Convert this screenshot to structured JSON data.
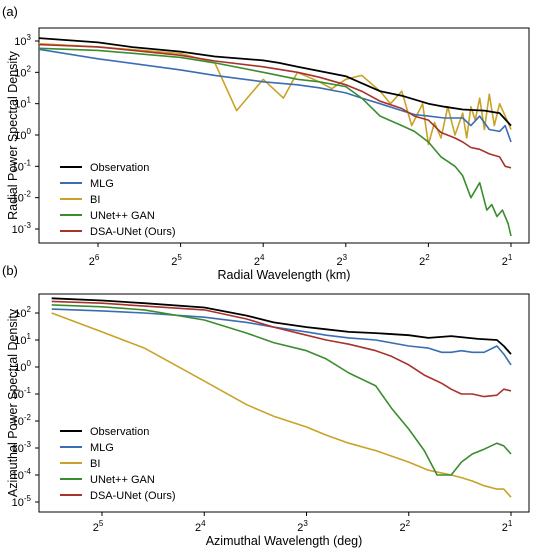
{
  "chart_data": [
    {
      "type": "line",
      "panel_label": "(a)",
      "xlabel": "Radial Wavelength (km)",
      "ylabel": "Radial Power Spectral Density",
      "x_scale": "log2-reversed",
      "y_scale": "log10",
      "x_ticks": [
        {
          "value": 64,
          "base": "2",
          "exp": "6"
        },
        {
          "value": 32,
          "base": "2",
          "exp": "5"
        },
        {
          "value": 16,
          "base": "2",
          "exp": "4"
        },
        {
          "value": 8,
          "base": "2",
          "exp": "3"
        },
        {
          "value": 4,
          "base": "2",
          "exp": "2"
        },
        {
          "value": 2,
          "base": "2",
          "exp": "1"
        }
      ],
      "y_ticks": [
        {
          "value": 1000,
          "base": "10",
          "exp": "3"
        },
        {
          "value": 100,
          "base": "10",
          "exp": "2"
        },
        {
          "value": 10,
          "base": "10",
          "exp": "1"
        },
        {
          "value": 1,
          "base": "10",
          "exp": "0"
        },
        {
          "value": 0.1,
          "base": "10",
          "exp": "-1"
        },
        {
          "value": 0.01,
          "base": "10",
          "exp": "-2"
        },
        {
          "value": 0.001,
          "base": "10",
          "exp": "-3"
        }
      ],
      "legend_position": "bottom-left",
      "series": [
        {
          "name": "Observation",
          "color": "#000000",
          "x": [
            128,
            64,
            48,
            32,
            24,
            16,
            14,
            12,
            10,
            8,
            7,
            6,
            5,
            4,
            3.5,
            3,
            2.5,
            2.2,
            2
          ],
          "y": [
            1400,
            900,
            640,
            460,
            320,
            240,
            200,
            150,
            110,
            75,
            45,
            25,
            18,
            10,
            8,
            6.5,
            6,
            5,
            2
          ]
        },
        {
          "name": "MLG",
          "color": "#3b6db4",
          "x": [
            128,
            64,
            32,
            24,
            16,
            12,
            10,
            8,
            7,
            6,
            5,
            4.5,
            4,
            3.5,
            3,
            2.8,
            2.6,
            2.4,
            2.2,
            2.1,
            2
          ],
          "y": [
            720,
            270,
            120,
            80,
            50,
            40,
            32,
            22,
            15,
            10,
            6,
            4.5,
            4,
            3.5,
            3.5,
            2,
            4,
            1.5,
            1.3,
            2,
            0.6
          ]
        },
        {
          "name": "BI",
          "color": "#c9a227",
          "x": [
            128,
            64,
            32,
            24,
            20,
            16,
            13.5,
            12,
            10,
            9,
            8,
            7,
            6,
            5.5,
            5,
            4.6,
            4.2,
            4,
            3.8,
            3.6,
            3.4,
            3.2,
            3,
            2.9,
            2.8,
            2.7,
            2.6,
            2.5,
            2.4,
            2.3,
            2.2,
            2.1,
            2
          ],
          "y": [
            900,
            650,
            400,
            200,
            6,
            60,
            15,
            100,
            50,
            30,
            60,
            80,
            25,
            10,
            25,
            2,
            10,
            0.5,
            2.5,
            0.8,
            8,
            1,
            5,
            0.8,
            8,
            3,
            15,
            1.5,
            20,
            2,
            10,
            4,
            1.5
          ]
        },
        {
          "name": "UNet++ GAN",
          "color": "#3a8d2e",
          "x": [
            128,
            64,
            32,
            24,
            16,
            12,
            10,
            8,
            7,
            6,
            5,
            4.5,
            4,
            3.6,
            3.2,
            3,
            2.8,
            2.6,
            2.45,
            2.35,
            2.25,
            2.15,
            2.05,
            2
          ],
          "y": [
            620,
            500,
            300,
            200,
            100,
            60,
            50,
            35,
            15,
            4,
            2,
            1.3,
            0.6,
            0.2,
            0.1,
            0.05,
            0.01,
            0.03,
            0.004,
            0.006,
            0.0025,
            0.004,
            0.0015,
            0.0006
          ]
        },
        {
          "name": "DSA-UNet (Ours)",
          "color": "#a8322c",
          "x": [
            128,
            64,
            32,
            24,
            16,
            12,
            10,
            8,
            7,
            6,
            5,
            4.5,
            4,
            3.6,
            3.2,
            3,
            2.8,
            2.6,
            2.4,
            2.2,
            2.1,
            2
          ],
          "y": [
            820,
            650,
            350,
            230,
            150,
            100,
            70,
            40,
            25,
            12,
            7,
            4,
            3,
            1.2,
            0.8,
            0.6,
            0.4,
            0.35,
            0.25,
            0.2,
            0.1,
            0.09
          ]
        }
      ]
    },
    {
      "type": "line",
      "panel_label": "(b)",
      "xlabel": "Azimuthal Wavelength (deg)",
      "ylabel": "Azimuthal Power Spectral Density",
      "x_scale": "log2-reversed",
      "y_scale": "log10",
      "x_ticks": [
        {
          "value": 32,
          "base": "2",
          "exp": "5"
        },
        {
          "value": 16,
          "base": "2",
          "exp": "4"
        },
        {
          "value": 8,
          "base": "2",
          "exp": "3"
        },
        {
          "value": 4,
          "base": "2",
          "exp": "2"
        },
        {
          "value": 2,
          "base": "2",
          "exp": "1"
        }
      ],
      "y_ticks": [
        {
          "value": 100,
          "base": "10",
          "exp": "2"
        },
        {
          "value": 10,
          "base": "10",
          "exp": "1"
        },
        {
          "value": 1,
          "base": "10",
          "exp": "0"
        },
        {
          "value": 0.1,
          "base": "10",
          "exp": "-1"
        },
        {
          "value": 0.01,
          "base": "10",
          "exp": "-2"
        },
        {
          "value": 0.001,
          "base": "10",
          "exp": "-3"
        },
        {
          "value": 0.0001,
          "base": "10",
          "exp": "-4"
        },
        {
          "value": 1e-05,
          "base": "10",
          "exp": "-5"
        }
      ],
      "legend_position": "bottom-left",
      "series": [
        {
          "name": "Observation",
          "color": "#000000",
          "x": [
            45,
            32,
            24,
            16,
            12,
            10,
            8,
            7,
            6,
            5,
            4,
            3.5,
            3,
            2.5,
            2.2,
            2.1,
            2
          ],
          "y": [
            350,
            290,
            230,
            160,
            80,
            45,
            30,
            25,
            20,
            18,
            15,
            12,
            14,
            11,
            10,
            6,
            3
          ]
        },
        {
          "name": "MLG",
          "color": "#3b6db4",
          "x": [
            45,
            32,
            24,
            16,
            12,
            10,
            8,
            7,
            6,
            5,
            4,
            3.5,
            3.2,
            3,
            2.8,
            2.6,
            2.4,
            2.2,
            2.1,
            2
          ],
          "y": [
            140,
            120,
            100,
            70,
            45,
            30,
            20,
            15,
            12,
            10,
            6,
            5,
            3.5,
            3.5,
            4,
            3.5,
            3.5,
            6,
            3,
            1.2
          ]
        },
        {
          "name": "BI",
          "color": "#c9a227",
          "x": [
            45,
            32,
            24,
            16,
            12,
            10,
            8,
            7,
            6,
            5,
            4,
            3.5,
            3,
            2.8,
            2.6,
            2.4,
            2.2,
            2.1,
            2
          ],
          "y": [
            100,
            20,
            5,
            0.3,
            0.04,
            0.015,
            0.006,
            0.003,
            0.0015,
            0.0008,
            0.0003,
            0.00015,
            0.0001,
            8e-05,
            6e-05,
            4e-05,
            3e-05,
            3e-05,
            1.5e-05
          ]
        },
        {
          "name": "UNet++ GAN",
          "color": "#3a8d2e",
          "x": [
            45,
            32,
            24,
            16,
            12,
            10,
            8,
            7,
            6,
            5,
            4.5,
            4,
            3.6,
            3.3,
            3,
            2.8,
            2.6,
            2.4,
            2.2,
            2.1,
            2
          ],
          "y": [
            200,
            170,
            130,
            55,
            18,
            8,
            4,
            2,
            0.6,
            0.2,
            0.03,
            0.005,
            0.0008,
            0.0001,
            0.0001,
            0.0003,
            0.0006,
            0.0009,
            0.0015,
            0.0012,
            0.0006
          ]
        },
        {
          "name": "DSA-UNet (Ours)",
          "color": "#a8322c",
          "x": [
            45,
            32,
            24,
            16,
            12,
            10,
            8,
            7,
            6,
            5,
            4.5,
            4,
            3.6,
            3.2,
            3,
            2.8,
            2.6,
            2.4,
            2.2,
            2.1,
            2
          ],
          "y": [
            270,
            230,
            180,
            130,
            60,
            30,
            15,
            10,
            7,
            4,
            2.5,
            1.2,
            0.5,
            0.25,
            0.15,
            0.1,
            0.1,
            0.08,
            0.09,
            0.15,
            0.13
          ]
        }
      ]
    }
  ]
}
